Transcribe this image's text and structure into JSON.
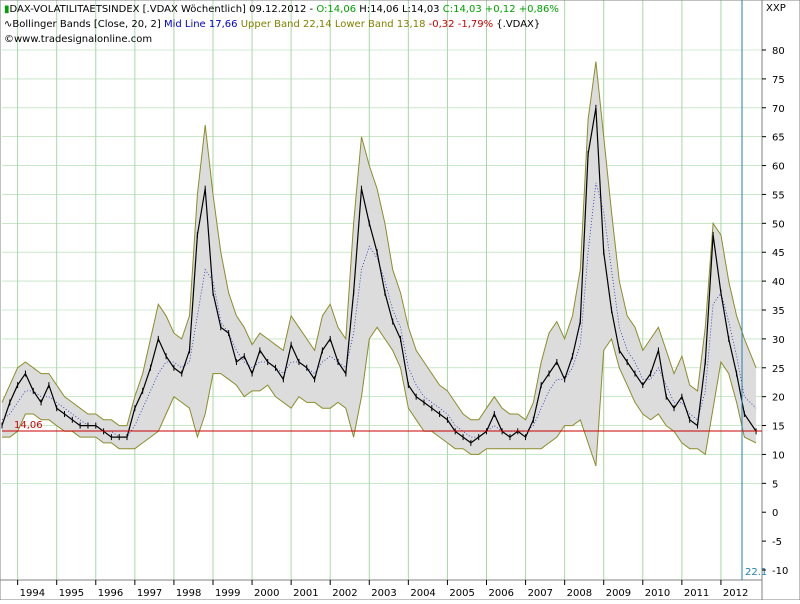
{
  "header": {
    "title_icon": "price-chart-icon",
    "title": "DAX-VOLATILITAETSINDEX [.VDAX  Wöchentlich] 09.12.2012 -",
    "ohlc": {
      "open": "O:14,06",
      "high": "H:14,06",
      "low": "L:14,03",
      "close": "C:14,03",
      "change": "+0,12",
      "change_pct": "+0,86%"
    },
    "bb_icon": "indicator-wave-icon",
    "bb_label": "Bollinger Bands [Close, 20, 2]",
    "mid_line": "Mid Line 17,66",
    "upper_band": "Upper Band 22,14",
    "lower_band": "Lower Band 13,18",
    "bb_change": "-0,32",
    "bb_change_pct": "-1,79%",
    "bb_symbol": "{.VDAX}",
    "copyright_icon": "copyright-icon",
    "copyright": "www.tradesignalonline.com",
    "axis_unit": "XXP"
  },
  "colors": {
    "price": "#000000",
    "band_fill": "#dcdcdc",
    "band_line": "#8c8c2a",
    "mid_line": "#2030c0",
    "ref_line": "#cc0000",
    "grid_v": "#a8d8a8",
    "grid_h": "#a8d8a8",
    "cursor": "#2080b0",
    "ohlc_green": "#00a000",
    "red_text": "#cc0000",
    "blue_text": "#0000cc",
    "olive_text": "#808000"
  },
  "chart_data": {
    "type": "line",
    "title": "DAX-VOLATILITAETSINDEX [.VDAX  Wöchentlich]",
    "xlabel": "",
    "ylabel": "",
    "ylim": [
      -10,
      80
    ],
    "yticks": [
      -10,
      -5,
      0,
      5,
      10,
      15,
      20,
      25,
      30,
      35,
      40,
      45,
      50,
      55,
      60,
      65,
      70,
      75,
      80
    ],
    "xlim": [
      1993.6,
      2013.0
    ],
    "xticks": [
      "1994",
      "1995",
      "1996",
      "1997",
      "1998",
      "1999",
      "2000",
      "2001",
      "2002",
      "2003",
      "2004",
      "2005",
      "2006",
      "2007",
      "2008",
      "2009",
      "2010",
      "2011",
      "2012"
    ],
    "grid": true,
    "reference_line": {
      "value": 14.06,
      "label": "14,06"
    },
    "last_value_label": "22.1",
    "series": [
      {
        "name": ".VDAX",
        "x": [
          1993.6,
          1993.8,
          1994.0,
          1994.2,
          1994.4,
          1994.6,
          1994.8,
          1995.0,
          1995.2,
          1995.4,
          1995.6,
          1995.8,
          1996.0,
          1996.2,
          1996.4,
          1996.6,
          1996.8,
          1997.0,
          1997.2,
          1997.4,
          1997.6,
          1997.8,
          1998.0,
          1998.2,
          1998.4,
          1998.6,
          1998.8,
          1999.0,
          1999.2,
          1999.4,
          1999.6,
          1999.8,
          2000.0,
          2000.2,
          2000.4,
          2000.6,
          2000.8,
          2001.0,
          2001.2,
          2001.4,
          2001.6,
          2001.8,
          2002.0,
          2002.2,
          2002.4,
          2002.6,
          2002.8,
          2003.0,
          2003.2,
          2003.4,
          2003.6,
          2003.8,
          2004.0,
          2004.2,
          2004.4,
          2004.6,
          2004.8,
          2005.0,
          2005.2,
          2005.4,
          2005.6,
          2005.8,
          2006.0,
          2006.2,
          2006.4,
          2006.6,
          2006.8,
          2007.0,
          2007.2,
          2007.4,
          2007.6,
          2007.8,
          2008.0,
          2008.2,
          2008.4,
          2008.6,
          2008.8,
          2009.0,
          2009.2,
          2009.4,
          2009.6,
          2009.8,
          2010.0,
          2010.2,
          2010.4,
          2010.6,
          2010.8,
          2011.0,
          2011.2,
          2011.4,
          2011.6,
          2011.8,
          2012.0,
          2012.2,
          2012.4,
          2012.6,
          2012.9
        ],
        "values": [
          15,
          19,
          22,
          24,
          21,
          19,
          22,
          18,
          17,
          16,
          15,
          15,
          15,
          14,
          13,
          13,
          13,
          18,
          21,
          25,
          30,
          27,
          25,
          24,
          28,
          48,
          56,
          38,
          32,
          31,
          26,
          27,
          24,
          28,
          26,
          25,
          23,
          29,
          26,
          25,
          23,
          28,
          30,
          26,
          24,
          38,
          56,
          50,
          45,
          38,
          33,
          30,
          22,
          20,
          19,
          18,
          17,
          16,
          14,
          13,
          12,
          13,
          14,
          17,
          14,
          13,
          14,
          13,
          16,
          22,
          24,
          26,
          23,
          27,
          33,
          62,
          70,
          45,
          35,
          28,
          26,
          24,
          22,
          24,
          28,
          20,
          18,
          20,
          16,
          15,
          26,
          48,
          38,
          30,
          24,
          17,
          14
        ],
        "mid_line": [
          16,
          17,
          19,
          21,
          21,
          20,
          20,
          19,
          18,
          17,
          16,
          15,
          15,
          14,
          14,
          13,
          13,
          15,
          18,
          21,
          24,
          26,
          26,
          25,
          26,
          34,
          42,
          40,
          33,
          31,
          28,
          26,
          25,
          26,
          26,
          25,
          24,
          26,
          26,
          25,
          24,
          26,
          27,
          26,
          25,
          31,
          42,
          46,
          44,
          40,
          35,
          32,
          25,
          22,
          20,
          19,
          18,
          17,
          15,
          14,
          13,
          13,
          14,
          15,
          14,
          14,
          14,
          14,
          15,
          18,
          21,
          23,
          23,
          25,
          29,
          45,
          57,
          52,
          42,
          32,
          28,
          26,
          23,
          23,
          25,
          22,
          19,
          19,
          17,
          16,
          21,
          36,
          38,
          33,
          27,
          20,
          18
        ],
        "upper_band": [
          19,
          22,
          25,
          26,
          25,
          24,
          24,
          22,
          20,
          19,
          18,
          17,
          17,
          16,
          16,
          15,
          15,
          20,
          24,
          30,
          36,
          34,
          31,
          30,
          34,
          55,
          67,
          55,
          45,
          38,
          34,
          32,
          29,
          31,
          30,
          29,
          28,
          34,
          32,
          30,
          28,
          34,
          36,
          32,
          30,
          50,
          65,
          60,
          56,
          50,
          42,
          38,
          32,
          28,
          26,
          24,
          22,
          21,
          19,
          17,
          16,
          16,
          18,
          20,
          18,
          17,
          17,
          16,
          19,
          26,
          31,
          33,
          30,
          34,
          42,
          68,
          78,
          65,
          52,
          40,
          34,
          32,
          28,
          30,
          32,
          28,
          24,
          27,
          22,
          21,
          32,
          50,
          48,
          40,
          34,
          30,
          25
        ],
        "lower_band": [
          13,
          13,
          14,
          17,
          17,
          16,
          16,
          15,
          14,
          14,
          13,
          13,
          13,
          12,
          12,
          11,
          11,
          11,
          12,
          13,
          14,
          17,
          20,
          19,
          18,
          13,
          17,
          24,
          24,
          23,
          22,
          20,
          21,
          21,
          22,
          20,
          19,
          18,
          20,
          19,
          19,
          18,
          18,
          19,
          18,
          13,
          20,
          30,
          32,
          30,
          28,
          25,
          18,
          16,
          14,
          14,
          13,
          12,
          11,
          11,
          10,
          10,
          11,
          11,
          11,
          11,
          11,
          11,
          11,
          11,
          12,
          13,
          15,
          15,
          16,
          12,
          8,
          28,
          30,
          25,
          22,
          19,
          17,
          16,
          17,
          15,
          14,
          12,
          11,
          11,
          10,
          18,
          26,
          24,
          19,
          13,
          12
        ]
      }
    ]
  }
}
